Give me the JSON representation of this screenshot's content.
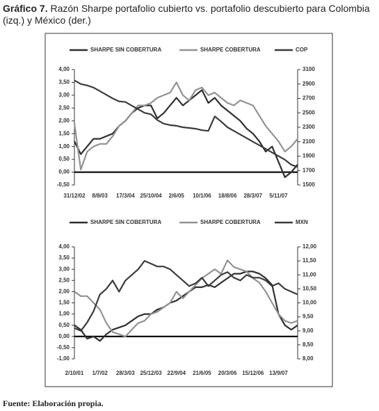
{
  "caption": {
    "label": "Gráfico 7.",
    "text": "Razón Sharpe portafolio cubierto vs. portafolio descubierto para Colombia (izq.) y México (der.)"
  },
  "chart_data": [
    {
      "type": "line",
      "categories": [
        "31/12/02",
        null,
        null,
        null,
        "8/8/03",
        null,
        null,
        null,
        "17/3/04",
        null,
        null,
        null,
        "25/10/04",
        null,
        null,
        null,
        "2/6/05",
        null,
        null,
        null,
        "10/1/06",
        null,
        null,
        null,
        "18/8/06",
        null,
        null,
        null,
        "28/3/07",
        null,
        null,
        null,
        "5/11/07",
        null,
        null,
        null
      ],
      "series": [
        {
          "name": "SHARPE SIN COBERTURA",
          "color": "#2e2e2e",
          "values": [
            1.2,
            0.7,
            1.0,
            1.3,
            1.3,
            1.4,
            1.5,
            1.8,
            2.0,
            2.3,
            2.5,
            2.6,
            2.6,
            2.1,
            2.3,
            2.6,
            2.9,
            2.6,
            2.8,
            3.0,
            3.2,
            2.7,
            2.9,
            2.6,
            2.4,
            2.2,
            2.0,
            1.7,
            1.5,
            1.2,
            0.8,
            1.0,
            0.4,
            -0.2,
            0.0,
            0.3
          ]
        },
        {
          "name": "SHARPE COBERTURA",
          "color": "#929292",
          "values": [
            1.9,
            0.1,
            0.8,
            1.0,
            1.1,
            1.1,
            1.4,
            1.8,
            2.0,
            2.3,
            2.6,
            2.6,
            2.7,
            2.9,
            3.0,
            3.1,
            3.5,
            3.0,
            2.8,
            3.2,
            3.3,
            3.0,
            3.1,
            2.9,
            2.7,
            2.6,
            2.8,
            2.7,
            2.6,
            2.2,
            1.8,
            1.5,
            1.2,
            0.8,
            1.0,
            1.3
          ]
        },
        {
          "name": "COP",
          "color": "#3a3a3a",
          "axis": "y2",
          "values": [
            2950,
            2900,
            2880,
            2850,
            2800,
            2750,
            2700,
            2660,
            2650,
            2600,
            2550,
            2500,
            2480,
            2400,
            2350,
            2330,
            2320,
            2300,
            2290,
            2280,
            2260,
            2250,
            2450,
            2380,
            2300,
            2250,
            2200,
            2150,
            2100,
            2050,
            2000,
            1950,
            1900,
            1850,
            1780,
            1750
          ]
        }
      ],
      "ylim": [
        -0.5,
        4
      ],
      "yticks": [
        {
          "value": -0.5,
          "label": "-0,50"
        },
        {
          "value": 0,
          "label": "0,00"
        },
        {
          "value": 0.5,
          "label": "0,50"
        },
        {
          "value": 1,
          "label": "1,00"
        },
        {
          "value": 1.5,
          "label": "1,50"
        },
        {
          "value": 2,
          "label": "2,00"
        },
        {
          "value": 2.5,
          "label": "2,50"
        },
        {
          "value": 3,
          "label": "3,00"
        },
        {
          "value": 3.5,
          "label": "3,50"
        },
        {
          "value": 4,
          "label": "4,00"
        }
      ],
      "y2lim": [
        1500,
        3100
      ],
      "y2ticks": [
        1500,
        1700,
        1900,
        2100,
        2300,
        2500,
        2700,
        2900,
        3100
      ],
      "zero_line": true,
      "legend": "top"
    },
    {
      "type": "line",
      "categories": [
        "2/10/01",
        null,
        null,
        null,
        "1/7/02",
        null,
        null,
        null,
        "28/3/03",
        null,
        null,
        null,
        "25/12/03",
        null,
        null,
        null,
        "22/9/04",
        null,
        null,
        null,
        "21/6/05",
        null,
        null,
        null,
        "20/3/06",
        null,
        null,
        null,
        "15/12/06",
        null,
        null,
        null,
        "13/9/07",
        null,
        null,
        null
      ],
      "series": [
        {
          "name": "SHARPE SIN COBERTURA",
          "color": "#2e2e2e",
          "values": [
            0.5,
            0.3,
            -0.1,
            0.0,
            -0.2,
            0.1,
            0.3,
            0.4,
            0.5,
            0.7,
            0.9,
            1.0,
            1.0,
            1.2,
            1.3,
            1.5,
            1.6,
            1.8,
            2.0,
            2.2,
            2.2,
            2.3,
            2.2,
            2.4,
            2.6,
            2.8,
            2.8,
            2.9,
            2.9,
            2.8,
            2.6,
            2.3,
            1.0,
            0.5,
            0.3,
            0.5
          ]
        },
        {
          "name": "SHARPE COBERTURA",
          "color": "#929292",
          "values": [
            2.0,
            1.8,
            1.8,
            1.5,
            1.2,
            0.6,
            0.2,
            0.1,
            0.0,
            0.3,
            0.6,
            0.7,
            1.0,
            1.1,
            1.3,
            1.5,
            2.0,
            1.7,
            2.0,
            2.3,
            2.6,
            2.8,
            3.0,
            2.8,
            3.4,
            3.1,
            3.0,
            2.9,
            2.6,
            2.4,
            2.0,
            1.5,
            1.0,
            0.7,
            0.6,
            0.7
          ]
        },
        {
          "name": "MXN",
          "color": "#3a3a3a",
          "axis": "y2",
          "values": [
            9.1,
            9.0,
            9.3,
            9.7,
            10.3,
            10.5,
            10.8,
            10.4,
            10.8,
            11.0,
            11.2,
            11.5,
            11.4,
            11.3,
            11.3,
            11.2,
            11.0,
            10.8,
            10.6,
            10.7,
            10.9,
            10.6,
            10.8,
            11.0,
            11.1,
            10.9,
            10.8,
            11.0,
            10.9,
            10.9,
            10.8,
            10.6,
            10.7,
            10.5,
            10.4,
            10.3
          ]
        }
      ],
      "ylim": [
        -1,
        4
      ],
      "yticks": [
        {
          "value": -1,
          "label": "-1,00"
        },
        {
          "value": -0.5,
          "label": "-0,50"
        },
        {
          "value": 0,
          "label": "0,00"
        },
        {
          "value": 0.5,
          "label": "0,50"
        },
        {
          "value": 1,
          "label": "1,00"
        },
        {
          "value": 1.5,
          "label": "1,50"
        },
        {
          "value": 2,
          "label": "2,00"
        },
        {
          "value": 2.5,
          "label": "2,50"
        },
        {
          "value": 3,
          "label": "3,00"
        },
        {
          "value": 3.5,
          "label": "3,50"
        },
        {
          "value": 4,
          "label": "4,00"
        }
      ],
      "y2lim": [
        8,
        12
      ],
      "y2ticks": [
        {
          "value": 8,
          "label": "8,00"
        },
        {
          "value": 8.5,
          "label": "8,50"
        },
        {
          "value": 9,
          "label": "9,00"
        },
        {
          "value": 9.5,
          "label": "9,50"
        },
        {
          "value": 10,
          "label": "10,00"
        },
        {
          "value": 10.5,
          "label": "10,50"
        },
        {
          "value": 11,
          "label": "11,00"
        },
        {
          "value": 11.5,
          "label": "11,50"
        },
        {
          "value": 12,
          "label": "12,00"
        }
      ],
      "zero_line": true,
      "legend": "top"
    }
  ],
  "source": "Fuente: Elaboración propia."
}
